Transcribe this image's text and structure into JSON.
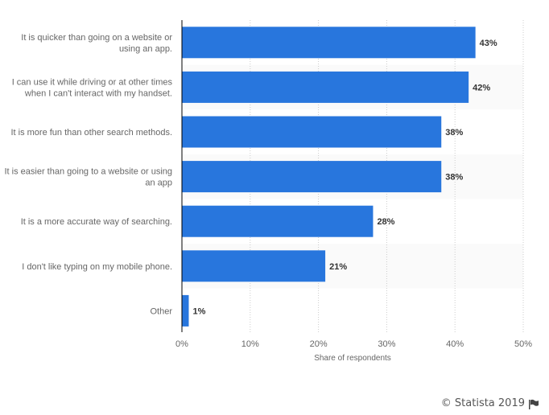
{
  "chart_data": {
    "type": "bar",
    "orientation": "horizontal",
    "categories": [
      [
        "It is quicker than going on a website or",
        "using an app."
      ],
      [
        "I can use it while driving or at other times",
        "when I can't interact with my handset."
      ],
      [
        "It is more fun than other search methods."
      ],
      [
        "It is easier than going to a website or using",
        "an app"
      ],
      [
        "It is a more accurate way of searching."
      ],
      [
        "I don't like typing on my mobile phone."
      ],
      [
        "Other"
      ]
    ],
    "values": [
      43,
      42,
      38,
      38,
      28,
      21,
      1
    ],
    "data_labels": [
      "43%",
      "42%",
      "38%",
      "38%",
      "28%",
      "21%",
      "1%"
    ],
    "xlim": [
      0,
      50
    ],
    "xticks": [
      0,
      10,
      20,
      30,
      40,
      50
    ],
    "xtick_labels": [
      "0%",
      "10%",
      "20%",
      "30%",
      "40%",
      "50%"
    ],
    "xlabel": "Share of respondents",
    "grid": "vertical dotted",
    "bar_color": "#2876dd"
  },
  "credit": "© Statista 2019",
  "credit_icon": "flag-icon"
}
